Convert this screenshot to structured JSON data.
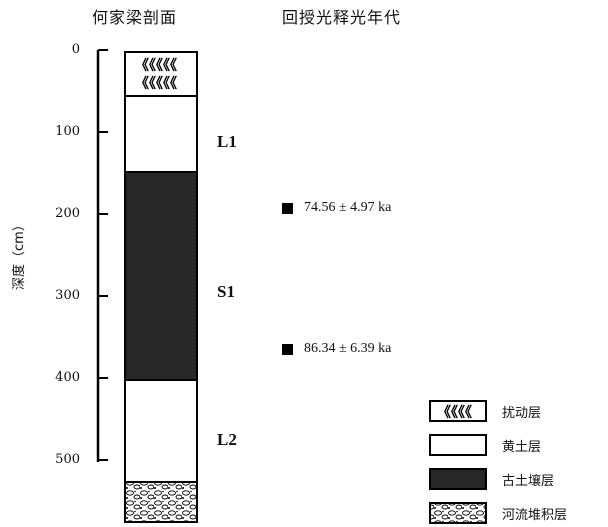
{
  "header": {
    "profile_title": "何家梁剖面",
    "dating_title": "回授光释光年代"
  },
  "axis": {
    "label": "深度（cm）",
    "ticks": [
      "0",
      "100",
      "200",
      "300",
      "400",
      "500"
    ]
  },
  "layers": [
    {
      "name": "L1",
      "type": "loess"
    },
    {
      "name": "S1",
      "type": "paleosol"
    },
    {
      "name": "L2",
      "type": "loess"
    }
  ],
  "dates": [
    {
      "text": "74.56 ± 4.97 ka"
    },
    {
      "text": "86.34 ± 6.39 ka"
    }
  ],
  "legend": [
    {
      "label": "扰动层",
      "pattern": "disturbed"
    },
    {
      "label": "黄土层",
      "pattern": "loess"
    },
    {
      "label": "古土壤层",
      "pattern": "paleosol"
    },
    {
      "label": "河流堆积层",
      "pattern": "fluvial"
    }
  ],
  "colors": {
    "paleosol": "#2a2a2a",
    "outline": "#000000"
  }
}
